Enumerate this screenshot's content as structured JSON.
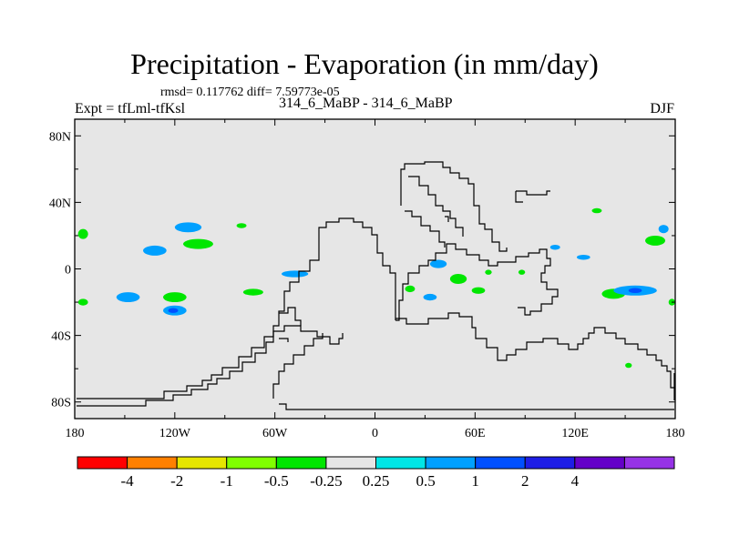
{
  "header": {
    "title": "Precipitation - Evaporation (in mm/day)",
    "stats": "rmsd= 0.117762 diff= 7.59773e-05",
    "expt": "Expt = tfLml-tfKsl",
    "case": "314_6_MaBP - 314_6_MaBP",
    "season": "DJF"
  },
  "chart_data": {
    "type": "heatmap",
    "title": "Precipitation - Evaporation (in mm/day)",
    "xlabel": "",
    "ylabel": "",
    "xlim": [
      -180,
      180
    ],
    "ylim": [
      -90,
      90
    ],
    "xticks": [
      {
        "value": -180,
        "label": "180"
      },
      {
        "value": -120,
        "label": "120W"
      },
      {
        "value": -60,
        "label": "60W"
      },
      {
        "value": 0,
        "label": "0"
      },
      {
        "value": 60,
        "label": "60E"
      },
      {
        "value": 120,
        "label": "120E"
      },
      {
        "value": 180,
        "label": "180"
      }
    ],
    "yticks": [
      {
        "value": 80,
        "label": "80N"
      },
      {
        "value": 40,
        "label": "40N"
      },
      {
        "value": 0,
        "label": "0"
      },
      {
        "value": -40,
        "label": "40S"
      },
      {
        "value": -80,
        "label": "80S"
      }
    ],
    "colorbar": {
      "colors": [
        "#ff0000",
        "#ff8000",
        "#e6e600",
        "#80ff00",
        "#00e600",
        "#e6e6e6",
        "#00e6e6",
        "#00a0ff",
        "#0050ff",
        "#1e1ee6",
        "#6400c8",
        "#9632e6"
      ],
      "labels": [
        "-4",
        "-2",
        "-1",
        "-0.5",
        "-0.25",
        "0.25",
        "0.5",
        "1",
        "2",
        "4"
      ]
    },
    "background_color": "#e6e6e6",
    "anomaly_regions": [
      {
        "lon": -175,
        "lat": 21,
        "rlon": 3,
        "rlat": 3,
        "level": "-0.25"
      },
      {
        "lon": -112,
        "lat": 25,
        "rlon": 8,
        "rlat": 3,
        "level": "0.5"
      },
      {
        "lon": -106,
        "lat": 15,
        "rlon": 9,
        "rlat": 3,
        "level": "-0.25"
      },
      {
        "lon": -132,
        "lat": 11,
        "rlon": 7,
        "rlat": 3,
        "level": "0.5"
      },
      {
        "lon": -80,
        "lat": 26,
        "rlon": 3,
        "rlat": 1.5,
        "level": "-0.25"
      },
      {
        "lon": -48,
        "lat": -3,
        "rlon": 8,
        "rlat": 2,
        "level": "0.5"
      },
      {
        "lon": -175,
        "lat": -20,
        "rlon": 3,
        "rlat": 2,
        "level": "-0.25"
      },
      {
        "lon": -148,
        "lat": -17,
        "rlon": 7,
        "rlat": 3,
        "level": "0.5"
      },
      {
        "lon": -120,
        "lat": -17,
        "rlon": 7,
        "rlat": 3,
        "level": "-0.25"
      },
      {
        "lon": -120,
        "lat": -25,
        "rlon": 7,
        "rlat": 3,
        "level": "0.5"
      },
      {
        "lon": -121,
        "lat": -25,
        "rlon": 3,
        "rlat": 1.5,
        "level": "1"
      },
      {
        "lon": -73,
        "lat": -14,
        "rlon": 6,
        "rlat": 2,
        "level": "-0.25"
      },
      {
        "lon": 38,
        "lat": 3,
        "rlon": 5,
        "rlat": 2.5,
        "level": "0.5"
      },
      {
        "lon": 50,
        "lat": -6,
        "rlon": 5,
        "rlat": 3,
        "level": "-0.25"
      },
      {
        "lon": 33,
        "lat": -17,
        "rlon": 4,
        "rlat": 2,
        "level": "0.5"
      },
      {
        "lon": 62,
        "lat": -13,
        "rlon": 4,
        "rlat": 2,
        "level": "-0.25"
      },
      {
        "lon": 68,
        "lat": -2,
        "rlon": 2,
        "rlat": 1.5,
        "level": "-0.25"
      },
      {
        "lon": 21,
        "lat": -12,
        "rlon": 3,
        "rlat": 2,
        "level": "-0.25"
      },
      {
        "lon": 88,
        "lat": -2,
        "rlon": 2,
        "rlat": 1.5,
        "level": "-0.25"
      },
      {
        "lon": 108,
        "lat": 13,
        "rlon": 3,
        "rlat": 1.5,
        "level": "0.5"
      },
      {
        "lon": 125,
        "lat": 7,
        "rlon": 4,
        "rlat": 1.5,
        "level": "0.5"
      },
      {
        "lon": 133,
        "lat": 35,
        "rlon": 3,
        "rlat": 1.5,
        "level": "-0.25"
      },
      {
        "lon": 168,
        "lat": 17,
        "rlon": 6,
        "rlat": 3,
        "level": "-0.25"
      },
      {
        "lon": 173,
        "lat": 24,
        "rlon": 3,
        "rlat": 2.5,
        "level": "0.5"
      },
      {
        "lon": 143,
        "lat": -15,
        "rlon": 7,
        "rlat": 3,
        "level": "-0.25"
      },
      {
        "lon": 156,
        "lat": -13,
        "rlon": 13,
        "rlat": 3,
        "level": "0.5"
      },
      {
        "lon": 156,
        "lat": -13,
        "rlon": 4,
        "rlat": 1.5,
        "level": "1"
      },
      {
        "lon": 178,
        "lat": -20,
        "rlon": 2,
        "rlat": 2,
        "level": "-0.25"
      },
      {
        "lon": 152,
        "lat": -58,
        "rlon": 2,
        "rlat": 1.5,
        "level": "-0.25"
      }
    ]
  }
}
